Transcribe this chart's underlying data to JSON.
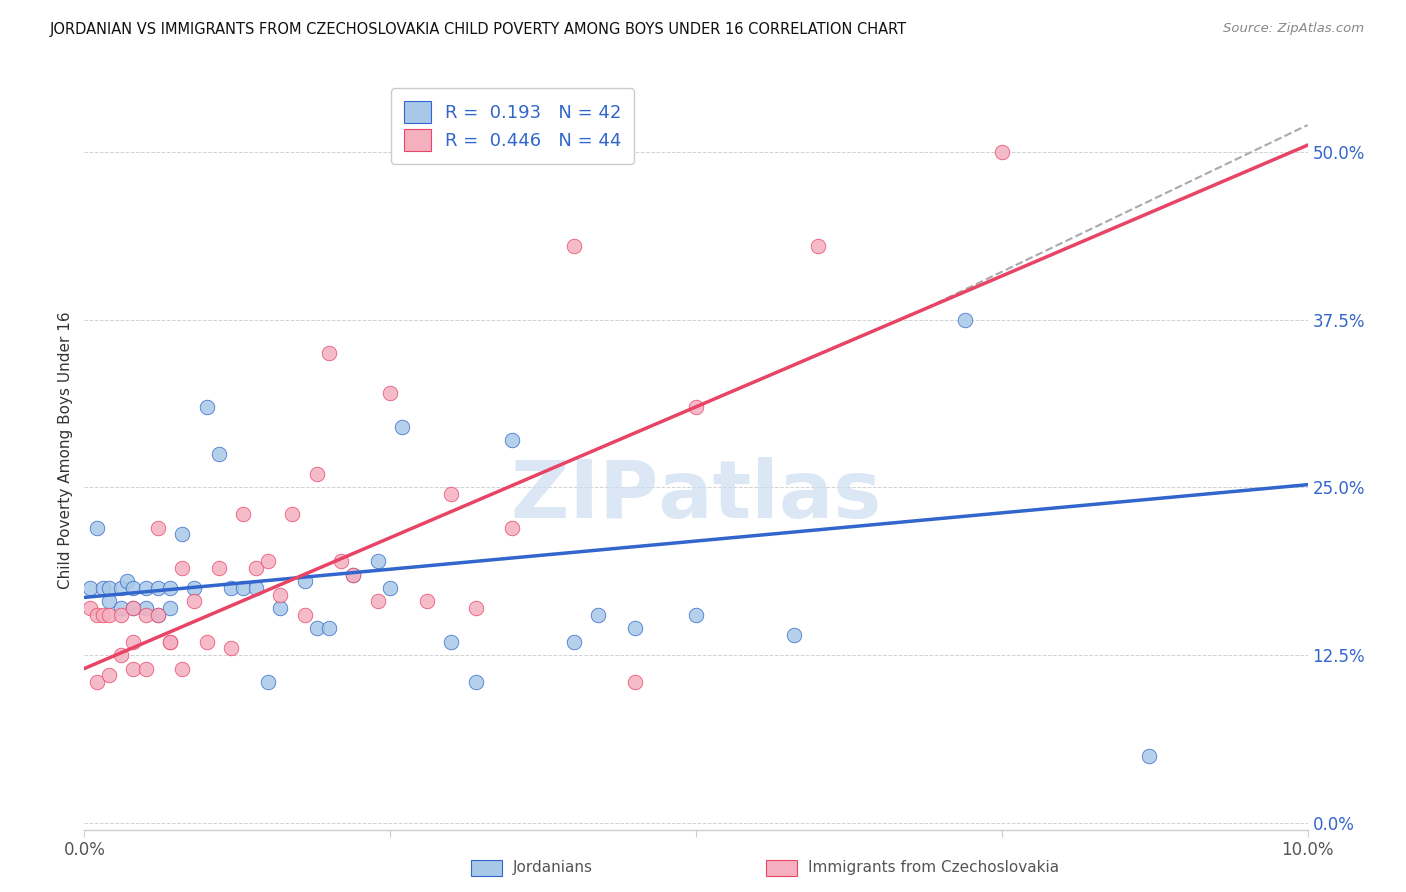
{
  "title": "JORDANIAN VS IMMIGRANTS FROM CZECHOSLOVAKIA CHILD POVERTY AMONG BOYS UNDER 16 CORRELATION CHART",
  "source": "Source: ZipAtlas.com",
  "ylabel": "Child Poverty Among Boys Under 16",
  "xlim": [
    0.0,
    0.1
  ],
  "ylim": [
    -0.005,
    0.56
  ],
  "yticks": [
    0.0,
    0.125,
    0.25,
    0.375,
    0.5
  ],
  "ytick_labels": [
    "0.0%",
    "12.5%",
    "25.0%",
    "37.5%",
    "50.0%"
  ],
  "xticks": [
    0.0,
    0.025,
    0.05,
    0.075,
    0.1
  ],
  "xtick_labels": [
    "0.0%",
    "",
    "",
    "",
    "10.0%"
  ],
  "blue_R": 0.193,
  "blue_N": 42,
  "pink_R": 0.446,
  "pink_N": 44,
  "blue_color": "#a8c8e8",
  "pink_color": "#f5b0c0",
  "blue_line_color": "#3366cc",
  "pink_line_color": "#e84466",
  "dashed_line_color": "#aaaaaa",
  "watermark_color": "#ccddf0",
  "legend_labels": [
    "Jordanians",
    "Immigrants from Czechoslovakia"
  ],
  "blue_scatter_x": [
    0.0005,
    0.001,
    0.0015,
    0.002,
    0.002,
    0.003,
    0.003,
    0.0035,
    0.004,
    0.004,
    0.005,
    0.005,
    0.006,
    0.006,
    0.007,
    0.007,
    0.008,
    0.009,
    0.01,
    0.011,
    0.012,
    0.013,
    0.014,
    0.015,
    0.016,
    0.018,
    0.019,
    0.02,
    0.022,
    0.024,
    0.025,
    0.026,
    0.03,
    0.032,
    0.035,
    0.04,
    0.042,
    0.045,
    0.05,
    0.058,
    0.072,
    0.087
  ],
  "blue_scatter_y": [
    0.175,
    0.22,
    0.175,
    0.175,
    0.165,
    0.175,
    0.16,
    0.18,
    0.175,
    0.16,
    0.175,
    0.16,
    0.175,
    0.155,
    0.175,
    0.16,
    0.215,
    0.175,
    0.31,
    0.275,
    0.175,
    0.175,
    0.175,
    0.105,
    0.16,
    0.18,
    0.145,
    0.145,
    0.185,
    0.195,
    0.175,
    0.295,
    0.135,
    0.105,
    0.285,
    0.135,
    0.155,
    0.145,
    0.155,
    0.14,
    0.375,
    0.05
  ],
  "pink_scatter_x": [
    0.0005,
    0.001,
    0.001,
    0.0015,
    0.002,
    0.002,
    0.003,
    0.003,
    0.004,
    0.004,
    0.004,
    0.005,
    0.005,
    0.006,
    0.006,
    0.007,
    0.007,
    0.008,
    0.008,
    0.009,
    0.01,
    0.011,
    0.012,
    0.013,
    0.014,
    0.015,
    0.016,
    0.017,
    0.018,
    0.019,
    0.02,
    0.021,
    0.022,
    0.024,
    0.025,
    0.028,
    0.03,
    0.032,
    0.035,
    0.04,
    0.045,
    0.05,
    0.06,
    0.075
  ],
  "pink_scatter_y": [
    0.16,
    0.155,
    0.105,
    0.155,
    0.155,
    0.11,
    0.155,
    0.125,
    0.16,
    0.135,
    0.115,
    0.155,
    0.115,
    0.22,
    0.155,
    0.135,
    0.135,
    0.115,
    0.19,
    0.165,
    0.135,
    0.19,
    0.13,
    0.23,
    0.19,
    0.195,
    0.17,
    0.23,
    0.155,
    0.26,
    0.35,
    0.195,
    0.185,
    0.165,
    0.32,
    0.165,
    0.245,
    0.16,
    0.22,
    0.43,
    0.105,
    0.31,
    0.43,
    0.5
  ],
  "blue_trend_x": [
    0.0,
    0.1
  ],
  "blue_trend_y": [
    0.168,
    0.252
  ],
  "pink_trend_x": [
    0.0,
    0.1
  ],
  "pink_trend_y": [
    0.115,
    0.505
  ],
  "dashed_trend_x": [
    0.068,
    0.1
  ],
  "dashed_trend_y": [
    0.38,
    0.52
  ]
}
